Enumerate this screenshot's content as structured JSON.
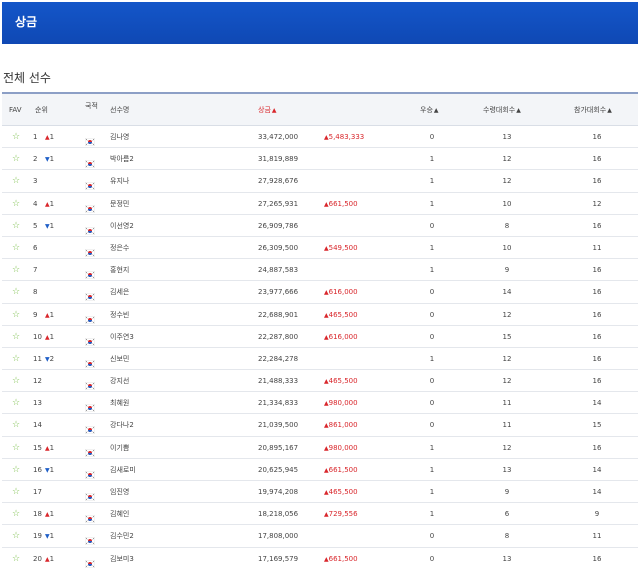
{
  "header": {
    "title": "상금"
  },
  "section": {
    "title": "전체 선수"
  },
  "columns": {
    "fav": "FAV",
    "rank": "순위",
    "nation": "국적",
    "player": "선수명",
    "prize": "상금",
    "wins": "우승",
    "played": "수령대회수",
    "entered": "참가대회수"
  },
  "colors": {
    "header_bg": "#1456c9",
    "up": "#d9262b",
    "down": "#1f5fc7",
    "fav_star": "#7bbf4a"
  },
  "rows": [
    {
      "rank": "1",
      "dir": "up",
      "chg": "1",
      "name": "김나영",
      "prize": "33,472,000",
      "inc": "5,483,333",
      "wins": "0",
      "played": "13",
      "entered": "16"
    },
    {
      "rank": "2",
      "dir": "down",
      "chg": "1",
      "name": "박아름2",
      "prize": "31,819,889",
      "inc": "",
      "wins": "1",
      "played": "12",
      "entered": "16"
    },
    {
      "rank": "3",
      "dir": "",
      "chg": "",
      "name": "유지나",
      "prize": "27,928,676",
      "inc": "",
      "wins": "1",
      "played": "12",
      "entered": "16"
    },
    {
      "rank": "4",
      "dir": "up",
      "chg": "1",
      "name": "문정민",
      "prize": "27,265,931",
      "inc": "661,500",
      "wins": "1",
      "played": "10",
      "entered": "12"
    },
    {
      "rank": "5",
      "dir": "down",
      "chg": "1",
      "name": "이선영2",
      "prize": "26,909,786",
      "inc": "",
      "wins": "0",
      "played": "8",
      "entered": "16"
    },
    {
      "rank": "6",
      "dir": "",
      "chg": "",
      "name": "정은수",
      "prize": "26,309,500",
      "inc": "549,500",
      "wins": "1",
      "played": "10",
      "entered": "11"
    },
    {
      "rank": "7",
      "dir": "",
      "chg": "",
      "name": "홍현지",
      "prize": "24,887,583",
      "inc": "",
      "wins": "1",
      "played": "9",
      "entered": "16"
    },
    {
      "rank": "8",
      "dir": "",
      "chg": "",
      "name": "김세은",
      "prize": "23,977,666",
      "inc": "616,000",
      "wins": "0",
      "played": "14",
      "entered": "16"
    },
    {
      "rank": "9",
      "dir": "up",
      "chg": "1",
      "name": "정수빈",
      "prize": "22,688,901",
      "inc": "465,500",
      "wins": "0",
      "played": "12",
      "entered": "16"
    },
    {
      "rank": "10",
      "dir": "up",
      "chg": "1",
      "name": "이주연3",
      "prize": "22,287,800",
      "inc": "616,000",
      "wins": "0",
      "played": "15",
      "entered": "16"
    },
    {
      "rank": "11",
      "dir": "down",
      "chg": "2",
      "name": "신보민",
      "prize": "22,284,278",
      "inc": "",
      "wins": "1",
      "played": "12",
      "entered": "16"
    },
    {
      "rank": "12",
      "dir": "",
      "chg": "",
      "name": "강지선",
      "prize": "21,488,333",
      "inc": "465,500",
      "wins": "0",
      "played": "12",
      "entered": "16"
    },
    {
      "rank": "13",
      "dir": "",
      "chg": "",
      "name": "최혜원",
      "prize": "21,334,833",
      "inc": "980,000",
      "wins": "0",
      "played": "11",
      "entered": "14"
    },
    {
      "rank": "14",
      "dir": "",
      "chg": "",
      "name": "강다나2",
      "prize": "21,039,500",
      "inc": "861,000",
      "wins": "0",
      "played": "11",
      "entered": "15"
    },
    {
      "rank": "15",
      "dir": "up",
      "chg": "1",
      "name": "이기쁨",
      "prize": "20,895,167",
      "inc": "980,000",
      "wins": "1",
      "played": "12",
      "entered": "16"
    },
    {
      "rank": "16",
      "dir": "down",
      "chg": "1",
      "name": "김새로미",
      "prize": "20,625,945",
      "inc": "661,500",
      "wins": "1",
      "played": "13",
      "entered": "14"
    },
    {
      "rank": "17",
      "dir": "",
      "chg": "",
      "name": "임진영",
      "prize": "19,974,208",
      "inc": "465,500",
      "wins": "1",
      "played": "9",
      "entered": "14"
    },
    {
      "rank": "18",
      "dir": "up",
      "chg": "1",
      "name": "김혜인",
      "prize": "18,218,056",
      "inc": "729,556",
      "wins": "1",
      "played": "6",
      "entered": "9"
    },
    {
      "rank": "19",
      "dir": "down",
      "chg": "1",
      "name": "김수민2",
      "prize": "17,808,000",
      "inc": "",
      "wins": "0",
      "played": "8",
      "entered": "11"
    },
    {
      "rank": "20",
      "dir": "up",
      "chg": "1",
      "name": "김보미3",
      "prize": "17,169,579",
      "inc": "661,500",
      "wins": "0",
      "played": "13",
      "entered": "16"
    }
  ]
}
